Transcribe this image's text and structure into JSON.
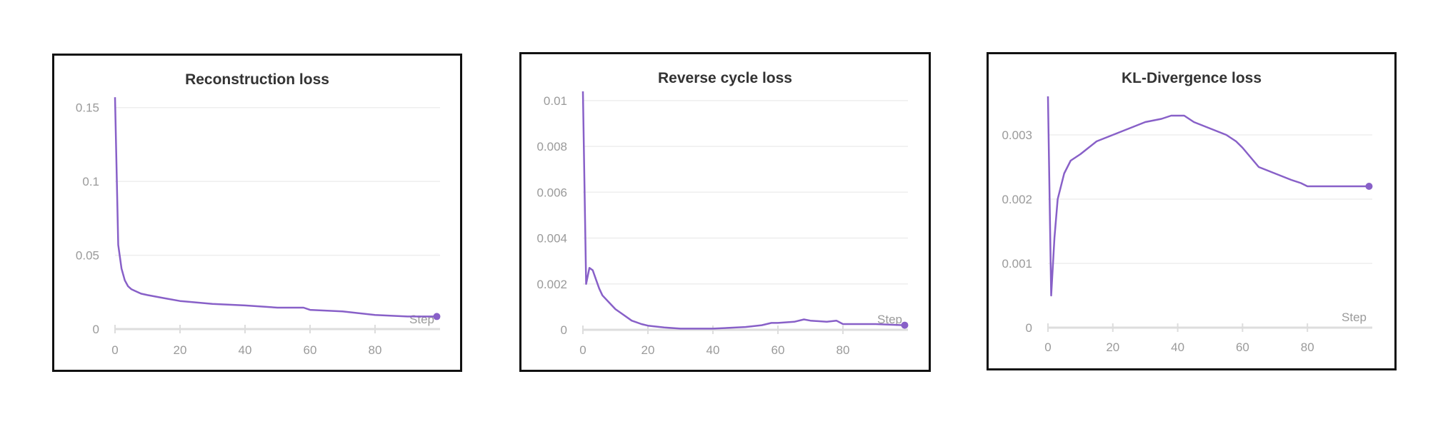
{
  "chart_data": [
    {
      "type": "line",
      "title": "Reconstruction loss",
      "xlabel": "Step",
      "ylabel": "",
      "xlim": [
        0,
        100
      ],
      "ylim": [
        0,
        0.16
      ],
      "xticks": [
        0,
        20,
        40,
        60,
        80
      ],
      "yticks": [
        0,
        0.05,
        0.1,
        0.15
      ],
      "ytick_labels": [
        "0",
        "0.05",
        "0.1",
        "0.15"
      ],
      "grid": true,
      "line_color": "#8860c8",
      "series": [
        {
          "x": [
            0,
            1,
            2,
            3,
            4,
            5,
            6,
            8,
            10,
            15,
            20,
            30,
            40,
            50,
            58,
            60,
            70,
            80,
            90,
            99
          ],
          "y": [
            0.157,
            0.057,
            0.041,
            0.033,
            0.029,
            0.027,
            0.026,
            0.024,
            0.023,
            0.021,
            0.019,
            0.017,
            0.016,
            0.0145,
            0.0145,
            0.013,
            0.012,
            0.0095,
            0.0085,
            0.0085
          ]
        }
      ]
    },
    {
      "type": "line",
      "title": "Reverse cycle loss",
      "xlabel": "Step",
      "ylabel": "",
      "xlim": [
        0,
        100
      ],
      "ylim": [
        0,
        0.0104
      ],
      "xticks": [
        0,
        20,
        40,
        60,
        80
      ],
      "yticks": [
        0,
        0.002,
        0.004,
        0.006,
        0.008,
        0.01
      ],
      "ytick_labels": [
        "0",
        "0.002",
        "0.004",
        "0.006",
        "0.008",
        "0.01"
      ],
      "grid": true,
      "line_color": "#8860c8",
      "series": [
        {
          "x": [
            0,
            1,
            2,
            3,
            4,
            5,
            6,
            8,
            10,
            12,
            15,
            18,
            20,
            25,
            30,
            40,
            50,
            55,
            58,
            60,
            65,
            68,
            70,
            75,
            78,
            80,
            90,
            99
          ],
          "y": [
            0.0104,
            0.002,
            0.0027,
            0.0026,
            0.0022,
            0.0018,
            0.0015,
            0.0012,
            0.0009,
            0.0007,
            0.0004,
            0.00025,
            0.00018,
            0.0001,
            5e-05,
            5e-05,
            0.00012,
            0.0002,
            0.0003,
            0.0003,
            0.00035,
            0.00045,
            0.0004,
            0.00035,
            0.0004,
            0.00025,
            0.00025,
            0.0002
          ]
        }
      ]
    },
    {
      "type": "line",
      "title": "KL-Divergence loss",
      "xlabel": "Step",
      "ylabel": "",
      "xlim": [
        0,
        100
      ],
      "ylim": [
        0,
        0.0037
      ],
      "xticks": [
        0,
        20,
        40,
        60,
        80
      ],
      "yticks": [
        0,
        0.001,
        0.002,
        0.003
      ],
      "ytick_labels": [
        "0",
        "0.001",
        "0.002",
        "0.003"
      ],
      "grid": true,
      "line_color": "#8860c8",
      "series": [
        {
          "x": [
            0,
            1,
            2,
            3,
            5,
            7,
            10,
            15,
            20,
            25,
            30,
            35,
            38,
            40,
            42,
            45,
            50,
            55,
            58,
            60,
            65,
            70,
            75,
            78,
            80,
            85,
            90,
            99
          ],
          "y": [
            0.0036,
            0.0005,
            0.0014,
            0.002,
            0.0024,
            0.0026,
            0.0027,
            0.0029,
            0.003,
            0.0031,
            0.0032,
            0.00325,
            0.0033,
            0.0033,
            0.0033,
            0.0032,
            0.0031,
            0.003,
            0.0029,
            0.0028,
            0.0025,
            0.0024,
            0.0023,
            0.00225,
            0.0022,
            0.0022,
            0.0022,
            0.0022
          ]
        }
      ]
    }
  ]
}
